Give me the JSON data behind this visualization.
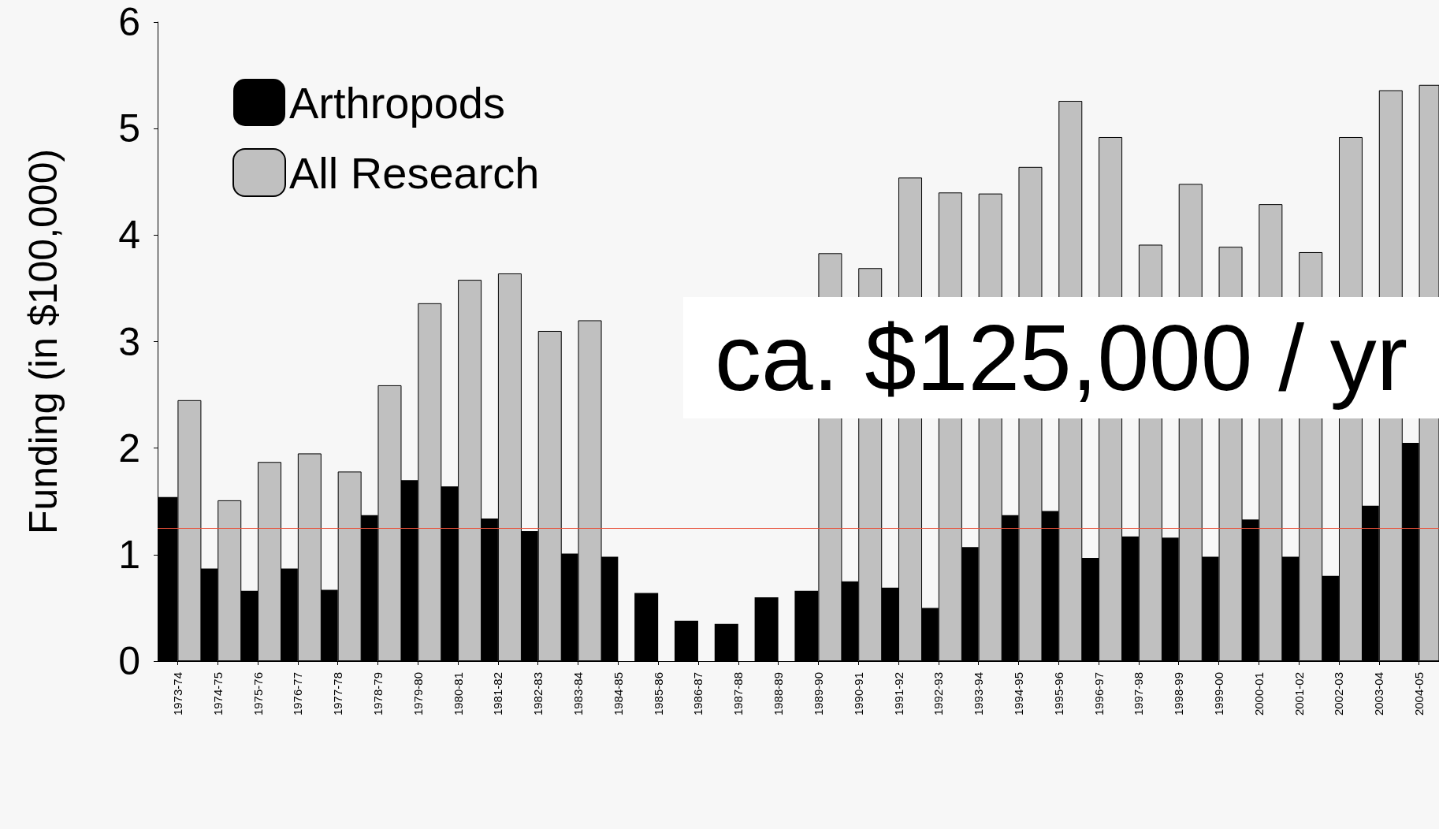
{
  "chart_data": {
    "type": "bar",
    "ylabel": "Funding (in $100,000)",
    "categories": [
      "1973-74",
      "1974-75",
      "1975-76",
      "1976-77",
      "1977-78",
      "1978-79",
      "1979-80",
      "1980-81",
      "1981-82",
      "1982-83",
      "1983-84",
      "1984-85",
      "1985-86",
      "1986-87",
      "1987-88",
      "1988-89",
      "1989-90",
      "1990-91",
      "1991-92",
      "1992-93",
      "1993-94",
      "1994-95",
      "1995-96",
      "1996-97",
      "1997-98",
      "1998-99",
      "1999-00",
      "2000-01",
      "2001-02",
      "2002-03",
      "2003-04",
      "2004-05"
    ],
    "series": [
      {
        "name": "Arthropods",
        "color": "#000000",
        "values": [
          1.54,
          0.87,
          0.66,
          0.87,
          0.67,
          1.37,
          1.7,
          1.64,
          1.34,
          1.22,
          1.01,
          0.98,
          0.64,
          0.38,
          0.35,
          0.6,
          0.66,
          0.75,
          0.69,
          0.5,
          1.07,
          1.37,
          1.41,
          0.97,
          1.17,
          1.16,
          0.98,
          1.33,
          0.98,
          0.8,
          1.46,
          2.05
        ]
      },
      {
        "name": "All Research",
        "color": "#c0c0c0",
        "values": [
          2.45,
          1.51,
          1.87,
          1.95,
          1.78,
          2.59,
          3.36,
          3.58,
          3.64,
          3.1,
          3.2,
          null,
          null,
          null,
          null,
          null,
          3.83,
          3.69,
          4.54,
          4.4,
          4.39,
          4.64,
          5.26,
          4.92,
          3.91,
          4.48,
          3.89,
          4.29,
          3.84,
          4.92,
          5.36,
          5.41
        ]
      }
    ],
    "ylim": [
      0,
      6
    ],
    "yticks": [
      0,
      1,
      2,
      3,
      4,
      5,
      6
    ],
    "ref_lines": [
      {
        "axis": "y",
        "value": 1.25,
        "color": "#e8503a"
      }
    ],
    "annotations": [
      "ca. $125,000 / yr"
    ],
    "legend": "top left",
    "grid": false
  }
}
